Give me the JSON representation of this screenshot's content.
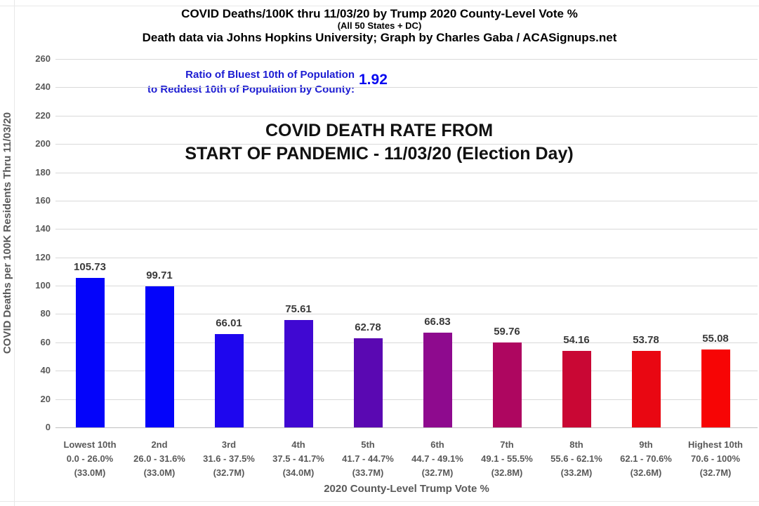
{
  "header": {
    "title": "COVID Deaths/100K thru 11/03/20 by Trump 2020 County-Level Vote %",
    "subtitle": "(All 50 States + DC)",
    "attribution": "Death data via Johns Hopkins University; Graph by Charles Gaba / ACASignups.net"
  },
  "ratio": {
    "label_line1": "Ratio of Bluest 10th of Population",
    "label_line2": "to Reddest 10th of Population by County:",
    "value": "1.92"
  },
  "chart_title": {
    "line1": "COVID DEATH RATE FROM",
    "line2": "START OF PANDEMIC - 11/03/20 (Election Day)"
  },
  "chart_data": {
    "type": "bar",
    "title": "COVID DEATH RATE FROM START OF PANDEMIC - 11/03/20 (Election Day)",
    "xlabel": "2020 County-Level Trump Vote %",
    "ylabel": "COVID Deaths per 100K Residents Thru 11/03/20",
    "ylim": [
      0,
      260
    ],
    "ytick_step": 20,
    "grid": true,
    "legend": "none",
    "categories": [
      "Lowest 10th",
      "2nd",
      "3rd",
      "4th",
      "5th",
      "6th",
      "7th",
      "8th",
      "9th",
      "Highest 10th"
    ],
    "category_vote_ranges": [
      "0.0 - 26.0%",
      "26.0 - 31.6%",
      "31.6 - 37.5%",
      "37.5 - 41.7%",
      "41.7 - 44.7%",
      "44.7 - 49.1%",
      "49.1 - 55.5%",
      "55.6 - 62.1%",
      "62.1 - 70.6%",
      "70.6 - 100%"
    ],
    "category_populations": [
      "(33.0M)",
      "(33.0M)",
      "(32.7M)",
      "(34.0M)",
      "(33.7M)",
      "(32.7M)",
      "(32.8M)",
      "(33.2M)",
      "(32.6M)",
      "(32.7M)"
    ],
    "values": [
      105.73,
      99.71,
      66.01,
      75.61,
      62.78,
      66.83,
      59.76,
      54.16,
      53.78,
      55.08
    ],
    "bar_colors": [
      "#0404fa",
      "#0404fa",
      "#1e06ee",
      "#4008d2",
      "#5a08b2",
      "#8e0a8e",
      "#ae0660",
      "#c90734",
      "#e90712",
      "#f70505"
    ]
  },
  "colors": {
    "accent_blue_text": "#1c1cd2",
    "accent_blue_value": "#0808f0",
    "gridline": "#d9d9d9",
    "axis_text": "#595959",
    "value_label_text": "#3a3a3a"
  }
}
